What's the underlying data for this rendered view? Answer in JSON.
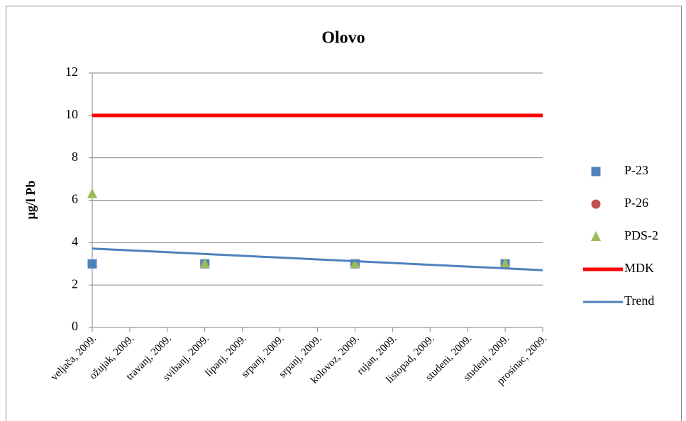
{
  "chart_data": {
    "type": "line",
    "title": "Olovo",
    "y_label": "µg/l Pb",
    "categories": [
      "veljača, 2009.",
      "ožujak, 2009.",
      "travanj, 2009.",
      "svibanj, 2009.",
      "lipanj, 2009.",
      "srpanj, 2009.",
      "srpanj, 2009.",
      "kolovoz, 2009.",
      "rujan, 2009.",
      "listopad, 2009.",
      "studeni, 2009.",
      "studeni, 2009.",
      "prosinac, 2009."
    ],
    "series": [
      {
        "name": "P-23",
        "color": "#4f81bd",
        "marker": "square",
        "values": [
          3,
          null,
          null,
          3,
          null,
          null,
          null,
          3,
          null,
          null,
          null,
          3,
          null
        ]
      },
      {
        "name": "P-26",
        "color": "#c0504d",
        "marker": "circle",
        "values": [
          3,
          null,
          null,
          3,
          null,
          null,
          null,
          3,
          null,
          null,
          null,
          3,
          null
        ]
      },
      {
        "name": "PDS-2",
        "color": "#9bbb59",
        "marker": "triangle",
        "values": [
          6.3,
          null,
          null,
          3,
          null,
          null,
          null,
          3,
          null,
          null,
          null,
          3,
          null
        ]
      },
      {
        "name": "MDK",
        "color": "#ff0000",
        "marker": "line-thick",
        "values": [
          10,
          10,
          10,
          10,
          10,
          10,
          10,
          10,
          10,
          10,
          10,
          10,
          10
        ]
      },
      {
        "name": "Trend",
        "color": "#4f81bd",
        "marker": "line",
        "values": [
          3.72,
          3.635,
          3.55,
          3.465,
          3.38,
          3.295,
          3.21,
          3.125,
          3.04,
          2.955,
          2.87,
          2.785,
          2.7
        ]
      }
    ],
    "ylim": [
      0,
      12
    ],
    "yticks": [
      0,
      2,
      4,
      6,
      8,
      10,
      12
    ],
    "grid": true,
    "legend": "right"
  }
}
